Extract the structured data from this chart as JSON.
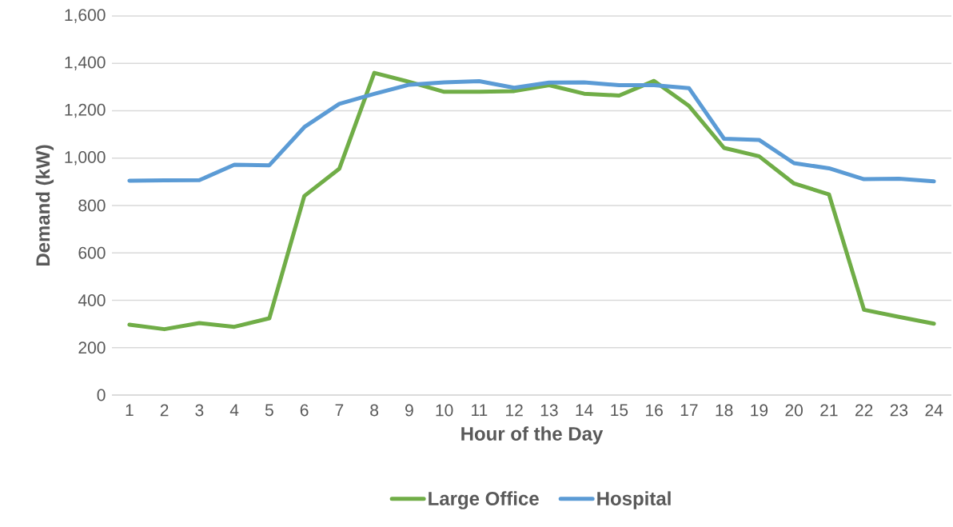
{
  "chart_data": {
    "type": "line",
    "xlabel": "Hour of the Day",
    "ylabel": "Demand (kW)",
    "categories": [
      "1",
      "2",
      "3",
      "4",
      "5",
      "6",
      "7",
      "8",
      "9",
      "10",
      "11",
      "12",
      "13",
      "14",
      "15",
      "16",
      "17",
      "18",
      "19",
      "20",
      "21",
      "22",
      "23",
      "24"
    ],
    "series": [
      {
        "name": "Large Office",
        "color": "#70ad47",
        "values": [
          297,
          278,
          304,
          288,
          324,
          840,
          955,
          1360,
          1322,
          1280,
          1280,
          1283,
          1308,
          1272,
          1264,
          1326,
          1220,
          1043,
          1008,
          893,
          847,
          360,
          330,
          301
        ]
      },
      {
        "name": "Hospital",
        "color": "#5b9bd5",
        "values": [
          905,
          906,
          907,
          972,
          970,
          1131,
          1229,
          1271,
          1310,
          1320,
          1325,
          1297,
          1319,
          1320,
          1308,
          1308,
          1295,
          1082,
          1077,
          979,
          957,
          911,
          913,
          902
        ]
      }
    ],
    "ylim": [
      0,
      1600
    ],
    "yticks": [
      0,
      200,
      400,
      600,
      800,
      {
        "value": 1000,
        "label": "1,000"
      },
      {
        "value": 1200,
        "label": "1,200"
      },
      {
        "value": 1400,
        "label": "1,400"
      },
      {
        "value": 1600,
        "label": "1,600"
      }
    ],
    "grid": "y",
    "legend": "bottom"
  }
}
